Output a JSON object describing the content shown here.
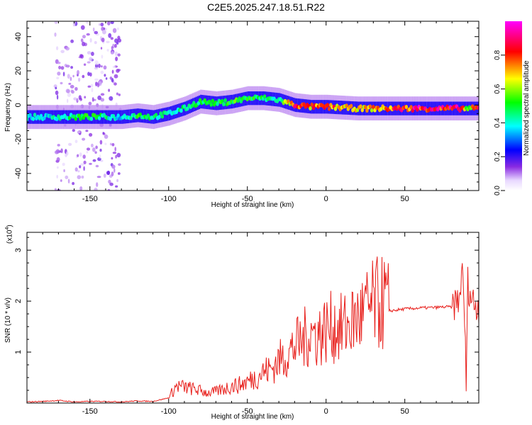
{
  "title": "C2E5.2025.247.18.51.R22",
  "chart_data": [
    {
      "type": "heatmap",
      "title": "C2E5.2025.247.18.51.R22",
      "xlabel": "Height of straight line (km)",
      "ylabel": "Frequency (Hz)",
      "xlim": [
        -190,
        97
      ],
      "ylim": [
        -50,
        49
      ],
      "xticks": [
        -150,
        -100,
        -50,
        0,
        50
      ],
      "yticks": [
        -40,
        -20,
        0,
        20,
        40
      ],
      "colorbar": {
        "label": "Normalized spectral amplitude",
        "range": [
          0,
          1
        ],
        "ticks": [
          "0.0",
          "0.2",
          "0.4",
          "0.6",
          "0.8"
        ],
        "tick_values": [
          0,
          0.2,
          0.4,
          0.6,
          0.8
        ]
      },
      "ridge": {
        "x": [
          -190,
          -170,
          -150,
          -130,
          -120,
          -110,
          -100,
          -90,
          -80,
          -70,
          -60,
          -50,
          -40,
          -30,
          -20,
          -10,
          0,
          20,
          40,
          60,
          85,
          90,
          97
        ],
        "freq": [
          -7,
          -7,
          -7,
          -7,
          -6,
          -7,
          -5,
          -2,
          2,
          1,
          2,
          4,
          4,
          3,
          0,
          -1,
          -1,
          -2,
          -2,
          -2,
          -2,
          -2,
          -2
        ],
        "peak": [
          0.4,
          0.45,
          0.55,
          0.4,
          0.55,
          0.5,
          0.45,
          0.5,
          0.55,
          0.5,
          0.6,
          0.55,
          0.5,
          0.45,
          0.9,
          0.8,
          0.9,
          0.7,
          0.85,
          0.95,
          0.95,
          0.6,
          0.95
        ]
      }
    },
    {
      "type": "line",
      "xlabel": "Height of straight line (km)",
      "ylabel": "SNR (10 * v/v)",
      "y_scale_label": "(x10",
      "y_scale_exp": "4",
      "y_scale_close": ")",
      "xlim": [
        -190,
        97
      ],
      "ylim": [
        0,
        3.35
      ],
      "xticks": [
        -150,
        -100,
        -50,
        0,
        50
      ],
      "yticks": [
        1,
        2,
        3
      ],
      "series": [
        {
          "name": "SNR",
          "color": "#e8201c",
          "x": [
            -190,
            -180,
            -170,
            -160,
            -150,
            -140,
            -130,
            -120,
            -110,
            -100,
            -95,
            -90,
            -85,
            -80,
            -75,
            -70,
            -65,
            -60,
            -55,
            -50,
            -45,
            -40,
            -35,
            -30,
            -25,
            -20,
            -15,
            -10,
            -5,
            0,
            5,
            10,
            15,
            20,
            25,
            30,
            40,
            50,
            60,
            70,
            75,
            80,
            83,
            85,
            86,
            87,
            88,
            89,
            90,
            92,
            95,
            97
          ],
          "y": [
            0.02,
            0.03,
            0.05,
            0.02,
            0.03,
            0.03,
            0.02,
            0.04,
            0.03,
            0.1,
            0.3,
            0.28,
            0.25,
            0.22,
            0.18,
            0.2,
            0.25,
            0.3,
            0.32,
            0.38,
            0.45,
            0.55,
            0.6,
            0.75,
            0.85,
            1.0,
            1.1,
            1.25,
            1.2,
            1.3,
            1.35,
            1.3,
            1.4,
            1.5,
            1.6,
            1.72,
            1.8,
            1.84,
            1.86,
            1.87,
            1.88,
            1.88,
            1.9,
            2.0,
            2.6,
            2.2,
            1.6,
            0.3,
            2.3,
            2.0,
            1.85,
            1.84
          ]
        }
      ]
    }
  ],
  "colors": {
    "line": "#e8201c",
    "axis": "#000000",
    "background": "#ffffff"
  }
}
